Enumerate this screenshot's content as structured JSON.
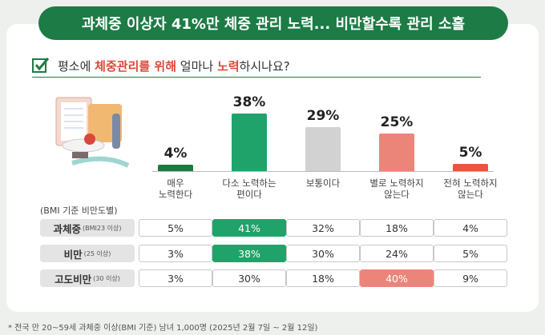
{
  "header": {
    "title": "과체중 이상자 41%만 체중 관리 노력... 비만할수록 관리 소홀"
  },
  "question": {
    "parts": [
      "평소에 ",
      "체중관리를 위해",
      " 얼마나 ",
      "노력",
      "하시나요?"
    ]
  },
  "chart_data": {
    "type": "bar",
    "categories": [
      "매우\n노력한다",
      "다소 노력하는\n편이다",
      "보통이다",
      "별로 노력하지\n않는다",
      "전혀 노력하지\n않는다"
    ],
    "values": [
      4,
      38,
      29,
      25,
      5
    ],
    "value_labels": [
      "4%",
      "38%",
      "29%",
      "25%",
      "5%"
    ],
    "colors": [
      "#1b7a3e",
      "#1fa36a",
      "#d2d2d2",
      "#ec8579",
      "#e8573a"
    ]
  },
  "table": {
    "caption": "(BMI 기준 비만도별)",
    "rows": [
      {
        "label": "과체중",
        "note": "(BMI23 이상)",
        "cells": [
          {
            "text": "5%"
          },
          {
            "text": "41%",
            "color": "#1fa36a"
          },
          {
            "text": "32%"
          },
          {
            "text": "18%"
          },
          {
            "text": "4%"
          }
        ]
      },
      {
        "label": "비만",
        "note": "(25 이상)",
        "cells": [
          {
            "text": "3%"
          },
          {
            "text": "38%",
            "color": "#1fa36a"
          },
          {
            "text": "30%"
          },
          {
            "text": "24%"
          },
          {
            "text": "5%"
          }
        ]
      },
      {
        "label": "고도비만",
        "note": "(30 이상)",
        "cells": [
          {
            "text": "3%"
          },
          {
            "text": "30%"
          },
          {
            "text": "18%"
          },
          {
            "text": "40%",
            "color": "#ec8579"
          },
          {
            "text": "9%"
          }
        ]
      }
    ]
  },
  "footnote": "* 전국 만 20~59세 과체중 이상(BMI 기준) 남녀 1,000명 (2025년 2월 7일 ~ 2월 12일)"
}
